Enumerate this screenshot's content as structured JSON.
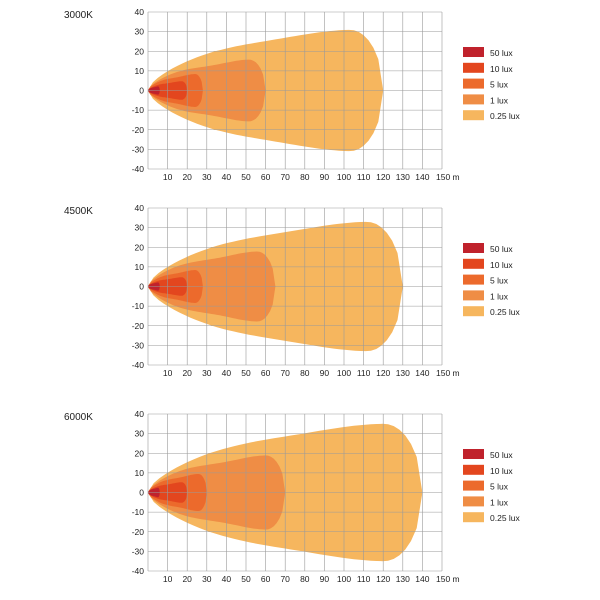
{
  "chart_data": [
    {
      "type": "area",
      "title": "3000K",
      "x_ticks": [
        10,
        20,
        30,
        40,
        50,
        60,
        70,
        80,
        90,
        100,
        110,
        120,
        130,
        140
      ],
      "x_unit": "m",
      "y_ticks": [
        40,
        30,
        20,
        10,
        0,
        -10,
        -20,
        -30,
        -40
      ],
      "xlim": [
        0,
        150
      ],
      "ylim": [
        -40,
        40
      ],
      "reach": {
        "0.25 lux": 120,
        "1 lux": 60,
        "5 lux": 28,
        "10 lux": 20,
        "50 lux": 6
      },
      "half_width": {
        "0.25 lux": 30,
        "1 lux": 15,
        "5 lux": 8,
        "10 lux": 4.5,
        "50 lux": 2
      }
    },
    {
      "type": "area",
      "title": "4500K",
      "x_ticks": [
        10,
        20,
        30,
        40,
        50,
        60,
        70,
        80,
        90,
        100,
        110,
        120,
        130,
        140
      ],
      "x_unit": "m",
      "y_ticks": [
        40,
        30,
        20,
        10,
        0,
        -10,
        -20,
        -30,
        -40
      ],
      "xlim": [
        0,
        150
      ],
      "ylim": [
        -40,
        40
      ],
      "reach": {
        "0.25 lux": 130,
        "1 lux": 65,
        "5 lux": 28,
        "10 lux": 20,
        "50 lux": 6
      },
      "half_width": {
        "0.25 lux": 32,
        "1 lux": 17,
        "5 lux": 8,
        "10 lux": 4.5,
        "50 lux": 2
      }
    },
    {
      "type": "area",
      "title": "6000K",
      "x_ticks": [
        10,
        20,
        30,
        40,
        50,
        60,
        70,
        80,
        90,
        100,
        110,
        120,
        130,
        140
      ],
      "x_unit": "m",
      "y_ticks": [
        40,
        30,
        20,
        10,
        0,
        -10,
        -20,
        -30,
        -40
      ],
      "xlim": [
        0,
        150
      ],
      "ylim": [
        -40,
        40
      ],
      "reach": {
        "0.25 lux": 140,
        "1 lux": 70,
        "5 lux": 30,
        "10 lux": 20,
        "50 lux": 6
      },
      "half_width": {
        "0.25 lux": 34,
        "1 lux": 18,
        "5 lux": 9,
        "10 lux": 5,
        "50 lux": 2.3
      }
    }
  ],
  "legend": [
    {
      "label": "50 lux",
      "color": "#c0222c"
    },
    {
      "label": "10 lux",
      "color": "#e3461e"
    },
    {
      "label": "5 lux",
      "color": "#ec6a2c"
    },
    {
      "label": "1 lux",
      "color": "#ef8d45"
    },
    {
      "label": "0.25 lux",
      "color": "#f6b65e"
    }
  ]
}
